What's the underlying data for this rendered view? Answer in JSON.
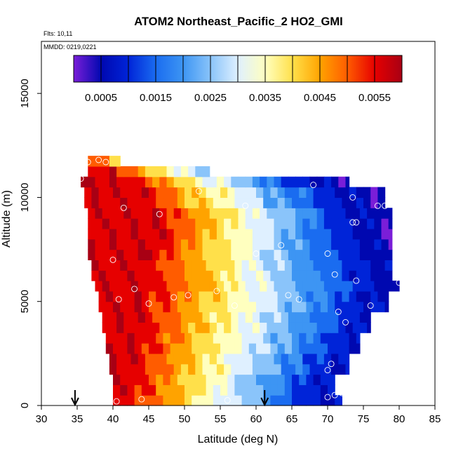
{
  "chart_data": {
    "type": "heatmap",
    "title": "ATOM2 Northeast_Pacific_2 HO2_GMI",
    "annotations": {
      "flights": "Flts: 10,11",
      "dates": "MMDD: 0219,0221"
    },
    "xlabel": "Latitude (deg N)",
    "ylabel": "Altitude (m)",
    "xlim": [
      30,
      85
    ],
    "ylim": [
      0,
      17500
    ],
    "x_ticks": [
      "30",
      "35",
      "40",
      "45",
      "50",
      "55",
      "60",
      "65",
      "70",
      "75",
      "80",
      "85"
    ],
    "y_ticks": [
      "0",
      "5000",
      "10000",
      "15000"
    ],
    "colorbar": {
      "range": [
        0.0,
        0.006
      ],
      "tick_labels": [
        "0.0005",
        "0.0015",
        "0.0025",
        "0.0035",
        "0.0045",
        "0.0055"
      ],
      "tick_values": [
        0.0005,
        0.0015,
        0.0025,
        0.0035,
        0.0045,
        0.0055
      ],
      "bins": 12,
      "colors": [
        "#7a1ed8",
        "#0008b0",
        "#0024d8",
        "#1a6cf0",
        "#3d95f3",
        "#8ac4fa",
        "#dff0ff",
        "#ffffbf",
        "#ffe04a",
        "#ffa300",
        "#ff5c00",
        "#e60000",
        "#a80014"
      ]
    },
    "arrows_x": [
      34.7,
      61.2
    ],
    "grid_step": {
      "lat": 1.0,
      "alt": 500
    },
    "layers": [
      {
        "alt": [
          0,
          500
        ],
        "lat": [
          40.0,
          72.0
        ],
        "peak_lat": 42.0,
        "width": 12,
        "low_lat": 67.0
      },
      {
        "alt": [
          500,
          1500
        ],
        "lat": [
          40.0,
          71.0
        ],
        "peak_lat": 42.5,
        "width": 14,
        "low_lat": 68.0
      },
      {
        "alt": [
          1500,
          2500
        ],
        "lat": [
          39.5,
          73.0
        ],
        "peak_lat": 43.0,
        "width": 16,
        "low_lat": 70.0
      },
      {
        "alt": [
          2500,
          3500
        ],
        "lat": [
          39.0,
          74.5
        ],
        "peak_lat": 43.5,
        "width": 17,
        "low_lat": 72.0
      },
      {
        "alt": [
          3500,
          4500
        ],
        "lat": [
          38.5,
          76.0
        ],
        "peak_lat": 44.0,
        "width": 18,
        "low_lat": 73.0
      },
      {
        "alt": [
          4500,
          5500
        ],
        "lat": [
          38.0,
          78.5
        ],
        "peak_lat": 44.5,
        "width": 19,
        "low_lat": 74.0
      },
      {
        "alt": [
          5500,
          6000
        ],
        "lat": [
          37.5,
          80.0
        ],
        "peak_lat": 45.0,
        "width": 20,
        "low_lat": 75.0
      },
      {
        "alt": [
          6000,
          7000
        ],
        "lat": [
          37.0,
          79.0
        ],
        "peak_lat": 45.0,
        "width": 16,
        "low_lat": 74.0
      },
      {
        "alt": [
          7000,
          8000
        ],
        "lat": [
          36.5,
          79.0
        ],
        "peak_lat": 45.5,
        "width": 16,
        "low_lat": 73.0
      },
      {
        "alt": [
          8000,
          9500
        ],
        "lat": [
          36.5,
          79.0
        ],
        "peak_lat": 46.5,
        "width": 17,
        "low_lat": 72.0
      },
      {
        "alt": [
          9500,
          10500
        ],
        "lat": [
          36.0,
          78.0
        ],
        "peak_lat": 44.0,
        "width": 16,
        "low_lat": 70.0
      },
      {
        "alt": [
          10500,
          11000
        ],
        "lat": [
          35.5,
          73.0
        ],
        "peak_lat": 42.0,
        "width": 14,
        "low_lat": 66.0
      },
      {
        "alt": [
          11000,
          11500
        ],
        "lat": [
          36.5,
          53.5
        ],
        "peak_lat": 40.0,
        "width": 12,
        "low_lat": 60.0
      },
      {
        "alt": [
          11500,
          12000
        ],
        "lat": [
          36.5,
          41.0
        ],
        "peak_lat": 36.0,
        "width": 12,
        "low_lat": 50.0
      }
    ],
    "observations": [
      {
        "lat": 36.5,
        "alt": 11700
      },
      {
        "lat": 38.0,
        "alt": 11800
      },
      {
        "lat": 39.0,
        "alt": 11700
      },
      {
        "lat": 35.5,
        "alt": 10900
      },
      {
        "lat": 52.0,
        "alt": 10300
      },
      {
        "lat": 68.0,
        "alt": 10600
      },
      {
        "lat": 73.5,
        "alt": 10000
      },
      {
        "lat": 41.5,
        "alt": 9500
      },
      {
        "lat": 58.5,
        "alt": 9600
      },
      {
        "lat": 77.0,
        "alt": 9600
      },
      {
        "lat": 78.0,
        "alt": 9600
      },
      {
        "lat": 46.5,
        "alt": 9200
      },
      {
        "lat": 73.5,
        "alt": 8800
      },
      {
        "lat": 74.0,
        "alt": 8800
      },
      {
        "lat": 63.5,
        "alt": 7700
      },
      {
        "lat": 60.0,
        "alt": 7300
      },
      {
        "lat": 70.0,
        "alt": 7300
      },
      {
        "lat": 40.0,
        "alt": 7000
      },
      {
        "lat": 71.0,
        "alt": 6300
      },
      {
        "lat": 74.0,
        "alt": 6000
      },
      {
        "lat": 80.0,
        "alt": 5900
      },
      {
        "lat": 43.0,
        "alt": 5600
      },
      {
        "lat": 54.5,
        "alt": 5500
      },
      {
        "lat": 40.8,
        "alt": 5100
      },
      {
        "lat": 48.5,
        "alt": 5200
      },
      {
        "lat": 50.5,
        "alt": 5300
      },
      {
        "lat": 64.5,
        "alt": 5300
      },
      {
        "lat": 66.0,
        "alt": 5100
      },
      {
        "lat": 45.0,
        "alt": 4900
      },
      {
        "lat": 57.0,
        "alt": 4800
      },
      {
        "lat": 76.0,
        "alt": 4800
      },
      {
        "lat": 71.5,
        "alt": 4500
      },
      {
        "lat": 72.5,
        "alt": 4000
      },
      {
        "lat": 70.5,
        "alt": 2000
      },
      {
        "lat": 70.0,
        "alt": 1700
      },
      {
        "lat": 71.0,
        "alt": 500
      },
      {
        "lat": 72.0,
        "alt": 600
      },
      {
        "lat": 70.0,
        "alt": 400
      },
      {
        "lat": 40.5,
        "alt": 200
      },
      {
        "lat": 44.0,
        "alt": 300
      },
      {
        "lat": 56.0,
        "alt": 250
      }
    ]
  }
}
